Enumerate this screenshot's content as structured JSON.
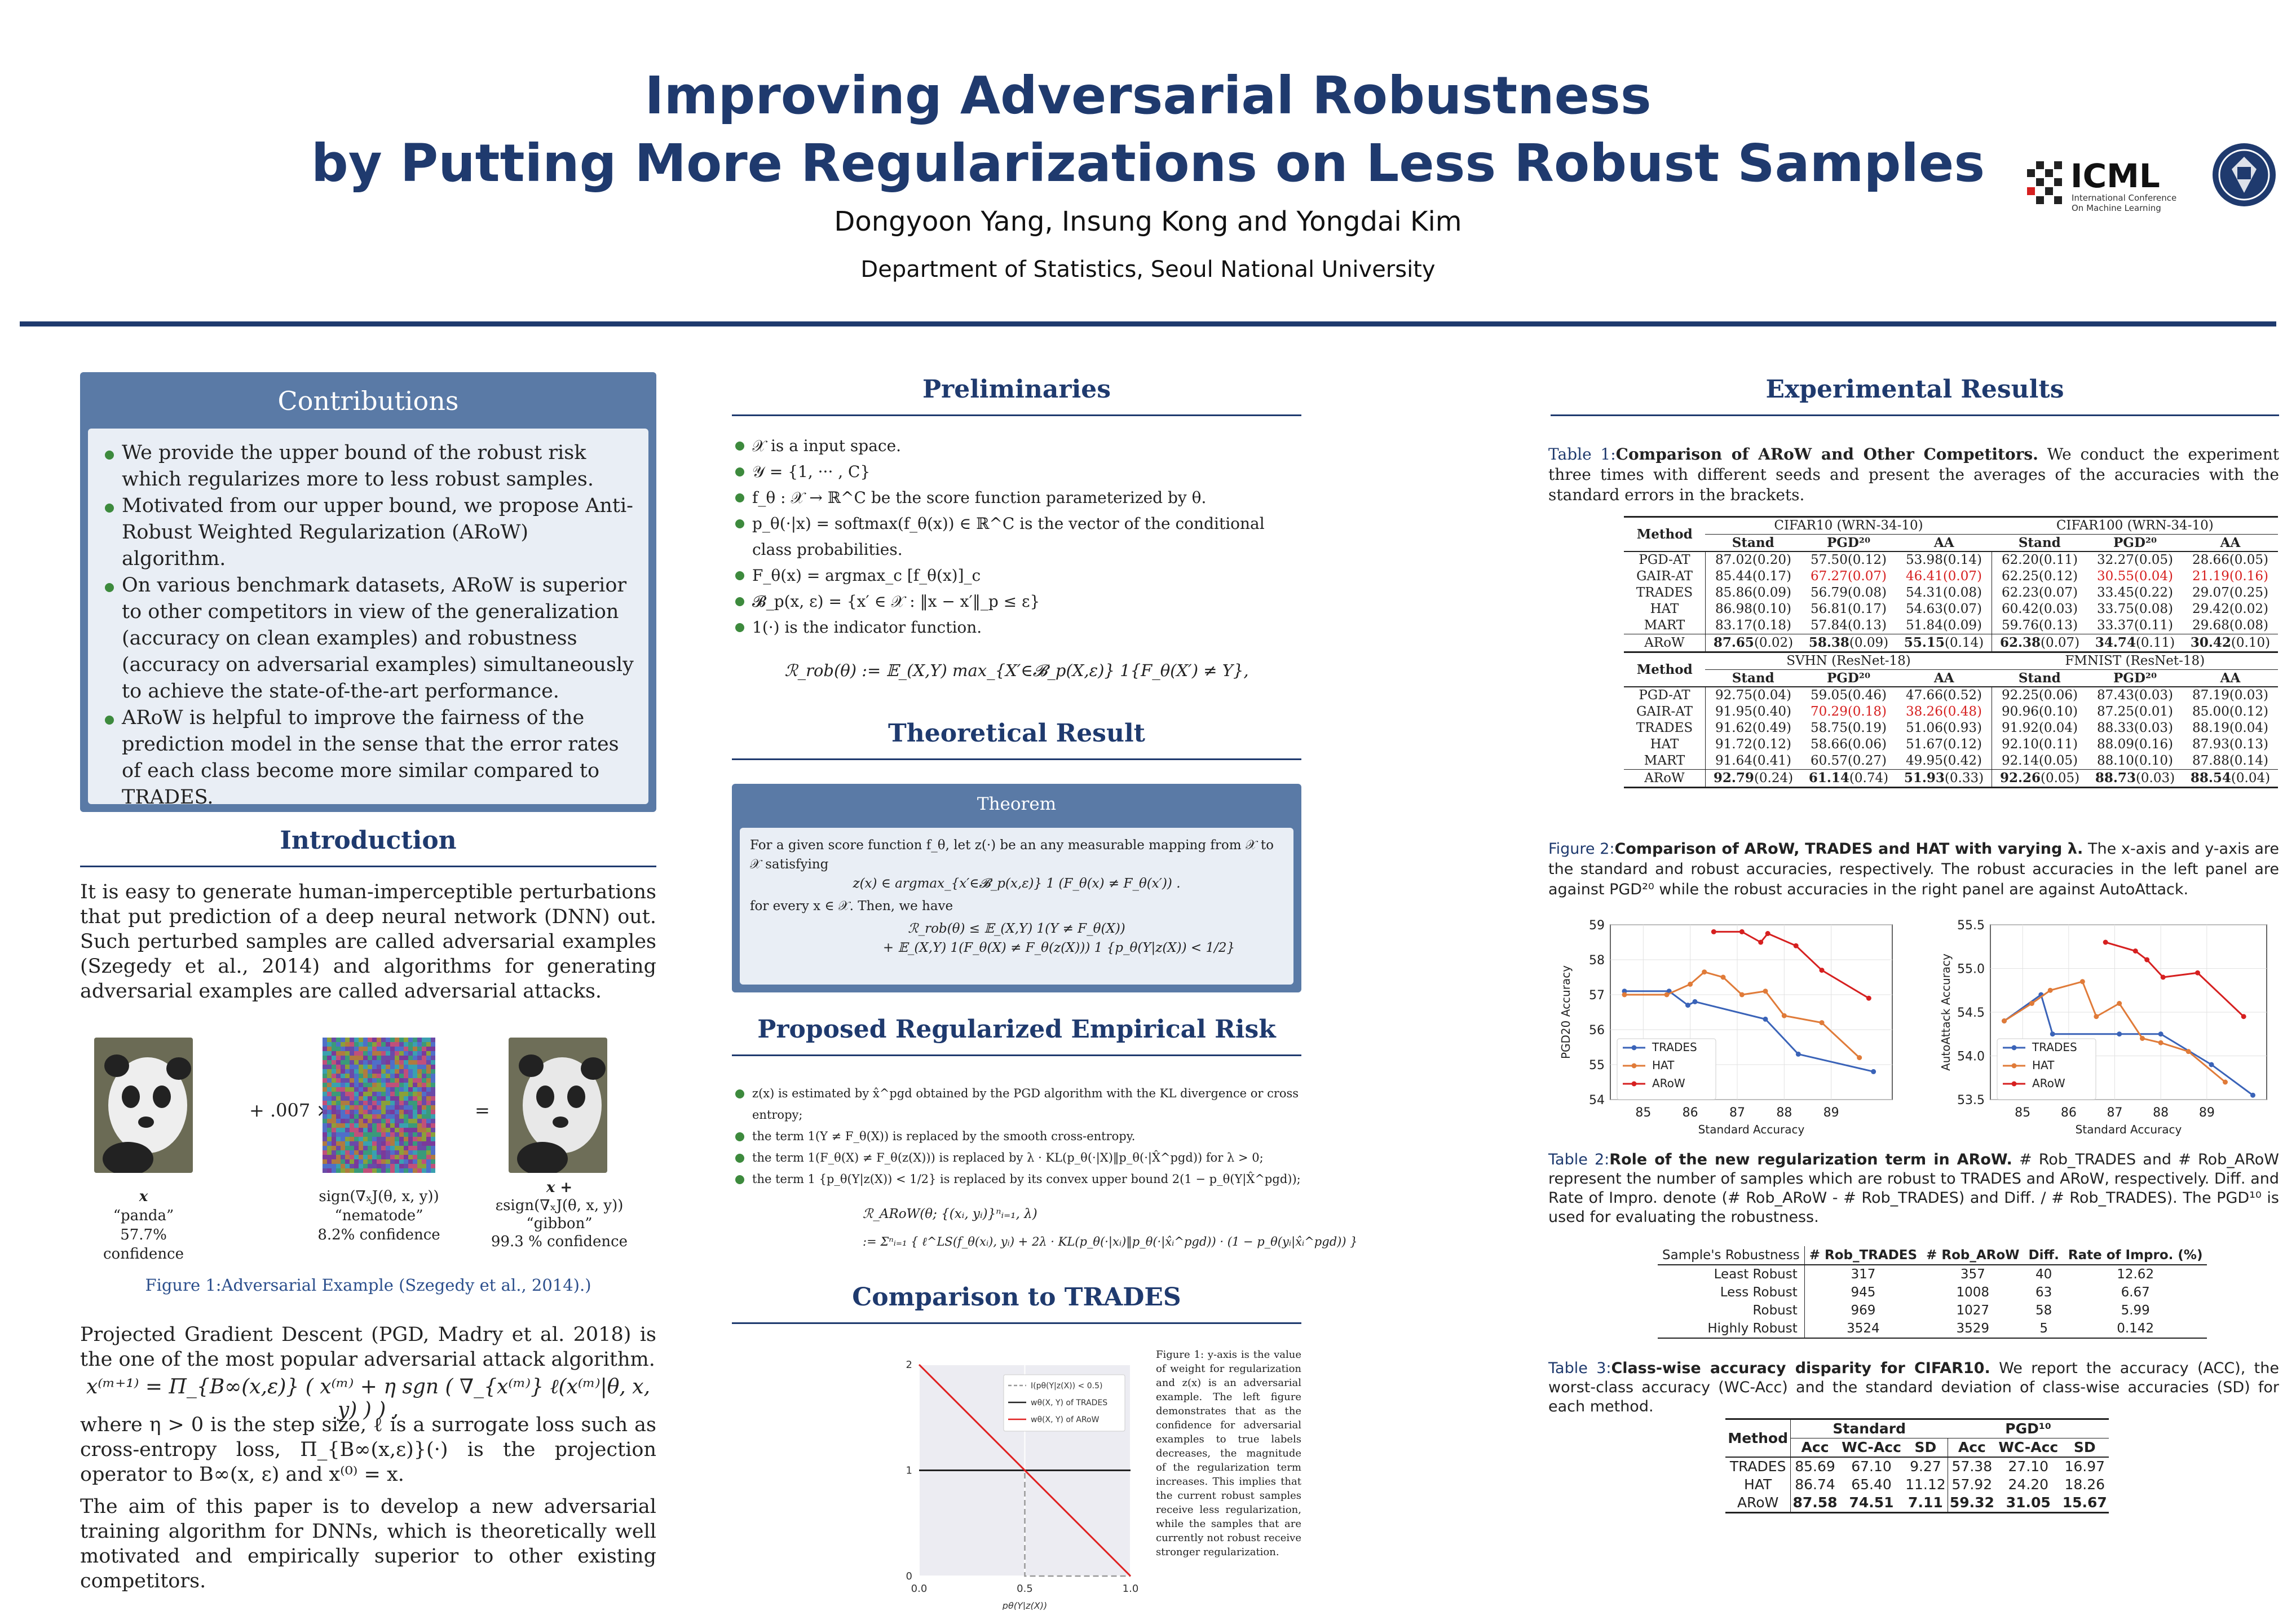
{
  "header": {
    "title_line1": "Improving Adversarial Robustness",
    "title_line2": "by Putting More Regularizations on Less Robust Samples",
    "authors": "Dongyoon Yang, Insung Kong and Yongdai Kim",
    "affiliation": "Department of Statistics, Seoul National University",
    "icml_logo": "ICML",
    "icml_sub1": "International Conference",
    "icml_sub2": "On Machine Learning"
  },
  "contributions": {
    "title": "Contributions",
    "items": [
      "We provide the upper bound of the robust risk which regularizes more to less robust samples.",
      "Motivated from our upper bound, we propose Anti-Robust Weighted Regularization (ARoW) algorithm.",
      "On various benchmark datasets, ARoW is superior to other competitors in view of the generalization (accuracy on clean examples) and robustness (accuracy on adversarial examples) simultaneously to achieve the state-of-the-art performance.",
      "ARoW is helpful to improve the fairness of the prediction model in the sense that the error rates of each class become more similar compared to TRADES."
    ]
  },
  "introduction": {
    "title": "Introduction",
    "para1": "It is easy to generate human-imperceptible perturbations that put prediction of a deep neural network (DNN) out. Such perturbed samples are called adversarial examples (Szegedy et al., 2014) and algorithms for generating adversarial examples are called adversarial attacks.",
    "fig": {
      "plus_text": "+ .007 ×",
      "equals": "=",
      "x_label": "x",
      "x_name": "“panda”",
      "x_conf": "57.7% confidence",
      "noise_label": "sign(∇ₓJ(θ, x, y))",
      "noise_name": "“nematode”",
      "noise_conf": "8.2% confidence",
      "adv_label1": "x +",
      "adv_label2": "εsign(∇ₓJ(θ, x, y))",
      "adv_name": "“gibbon”",
      "adv_conf": "99.3 % confidence",
      "caption": "Figure 1:Adversarial Example (Szegedy et al., 2014).)"
    },
    "para2": "Projected Gradient Descent (PGD, Madry et al. 2018) is the one of the most popular adversarial attack algorithm.",
    "equation": "x⁽ᵐ⁺¹⁾ = Π_{B∞(x,ε)} ( x⁽ᵐ⁾ + η sgn ( ∇_{x⁽ᵐ⁾} ℓ(x⁽ᵐ⁾|θ, x, y) ) ) ,",
    "para3": "where η > 0 is the step size, ℓ is a surrogate loss such as cross-entropy loss, Π_{B∞(x,ε)}(·) is the projection operator to B∞(x, ε) and x⁽⁰⁾ = x.",
    "para4": "The aim of this paper is to develop a new adversarial training algorithm for DNNs, which is theoretically well motivated and empirically superior to other existing competitors."
  },
  "preliminaries": {
    "title": "Preliminaries",
    "items": [
      "𝒳 is a input space.",
      "𝒴 = {1, ··· , C}",
      "f_θ : 𝒳 → ℝ^C be the score function parameterized by θ.",
      "p_θ(·|x) = softmax(f_θ(x)) ∈ ℝ^C is the vector of the conditional class probabilities.",
      "F_θ(x) = argmax_c [f_θ(x)]_c",
      "𝓑_p(x, ε) = {x′ ∈ 𝒳 : ‖x − x′‖_p ≤ ε}",
      "1(·) is the indicator function."
    ],
    "risk": "ℛ_rob(θ) := 𝔼_(X,Y) max_{X′∈𝓑_p(X,ε)} 1{F_θ(X′) ≠ Y},"
  },
  "theoretical": {
    "title": "Theoretical Result",
    "box_title": "Theorem",
    "line1": "For a given score function f_θ, let z(·) be an any measurable mapping from 𝒳 to 𝒳 satisfying",
    "eq1": "z(x) ∈ argmax_{x′∈𝓑_p(x,ε)} 1 (F_θ(x) ≠ F_θ(x′)) .",
    "line2": "for every x ∈ 𝒳. Then, we have",
    "eq2a": "ℛ_rob(θ) ≤ 𝔼_(X,Y) 1(Y ≠ F_θ(X))",
    "eq2b": "+ 𝔼_(X,Y) 1(F_θ(X) ≠ F_θ(z(X))) 1 {p_θ(Y|z(X)) < 1/2}"
  },
  "proposed": {
    "title": "Proposed Regularized Empirical Risk",
    "items": [
      "z(x) is estimated by x̂^pgd obtained by the PGD algorithm with the KL divergence or cross entropy;",
      "the term 1(Y ≠ F_θ(X)) is replaced by the smooth cross-entropy.",
      "the term 1(F_θ(X) ≠ F_θ(z(X))) is replaced by λ · KL(p_θ(·|X)‖p_θ(·|X̂^pgd)) for λ > 0;",
      "the term 1 {p_θ(Y|z(X)) < 1/2} is replaced by its convex upper bound 2(1 − p_θ(Y|X̂^pgd));"
    ],
    "eq1": "ℛ_ARoW(θ; {(xᵢ, yᵢ)}ⁿᵢ₌₁, λ)",
    "eq2": ":= Σⁿᵢ₌₁ { ℓ^LS(f_θ(xᵢ), yᵢ) + 2λ · KL(p_θ(·|xᵢ)‖p_θ(·|x̂ᵢ^pgd)) · (1 − p_θ(yᵢ|x̂ᵢ^pgd)) }"
  },
  "comparison": {
    "title": "Comparison to TRADES",
    "legend": [
      "I(pθ(Y|z(X)) < 0.5)",
      "wθ(X, Y) of TRADES",
      "wθ(X, Y) of ARoW"
    ],
    "xlabel": "pθ(Y|z(X))",
    "x_ticks": [
      "0.0",
      "0.5",
      "1.0"
    ],
    "y_ticks": [
      "0",
      "1",
      "2"
    ],
    "caption": "Figure 1: y-axis is the value of weight for regularization and z(x) is an adversarial example. The left figure demonstrates that as the confidence for adversarial examples to true labels decreases, the magnitude of the regularization term increases. This implies that the current robust samples receive less regularization, while the samples that are currently not robust receive stronger regularization."
  },
  "experimental": {
    "title": "Experimental Results",
    "table1_caption_label": "Table 1:",
    "table1_caption_bold": "Comparison of ARoW and Other Competitors.",
    "table1_caption_rest": " We conduct the experiment three times with different seeds and present the averages of the accuracies with the standard errors in the brackets.",
    "table1": {
      "method_header": "Method",
      "blocks": [
        {
          "ds1": "CIFAR10 (WRN-34-10)",
          "ds2": "CIFAR100 (WRN-34-10)",
          "cols": [
            "Stand",
            "PGD²⁰",
            "AA",
            "Stand",
            "PGD²⁰",
            "AA"
          ],
          "rows": [
            [
              "PGD-AT",
              "87.02(0.20)",
              "57.50(0.12)",
              "53.98(0.14)",
              "62.20(0.11)",
              "32.27(0.05)",
              "28.66(0.05)"
            ],
            [
              "GAIR-AT",
              "85.44(0.17)",
              "67.27(0.07)",
              "46.41(0.07)",
              "62.25(0.12)",
              "30.55(0.04)",
              "21.19(0.16)"
            ],
            [
              "TRADES",
              "85.86(0.09)",
              "56.79(0.08)",
              "54.31(0.08)",
              "62.23(0.07)",
              "33.45(0.22)",
              "29.07(0.25)"
            ],
            [
              "HAT",
              "86.98(0.10)",
              "56.81(0.17)",
              "54.63(0.07)",
              "60.42(0.03)",
              "33.75(0.08)",
              "29.42(0.02)"
            ],
            [
              "MART",
              "83.17(0.18)",
              "57.84(0.13)",
              "51.84(0.09)",
              "59.76(0.13)",
              "33.37(0.11)",
              "29.68(0.08)"
            ],
            [
              "ARoW",
              "87.65(0.02)",
              "58.38(0.09)",
              "55.15(0.14)",
              "62.38(0.07)",
              "34.74(0.11)",
              "30.42(0.10)"
            ]
          ]
        },
        {
          "ds1": "SVHN (ResNet-18)",
          "ds2": "FMNIST (ResNet-18)",
          "cols": [
            "Stand",
            "PGD²⁰",
            "AA",
            "Stand",
            "PGD²⁰",
            "AA"
          ],
          "rows": [
            [
              "PGD-AT",
              "92.75(0.04)",
              "59.05(0.46)",
              "47.66(0.52)",
              "92.25(0.06)",
              "87.43(0.03)",
              "87.19(0.03)"
            ],
            [
              "GAIR-AT",
              "91.95(0.40)",
              "70.29(0.18)",
              "38.26(0.48)",
              "90.96(0.10)",
              "87.25(0.01)",
              "85.00(0.12)"
            ],
            [
              "TRADES",
              "91.62(0.49)",
              "58.75(0.19)",
              "51.06(0.93)",
              "91.92(0.04)",
              "88.33(0.03)",
              "88.19(0.04)"
            ],
            [
              "HAT",
              "91.72(0.12)",
              "58.66(0.06)",
              "51.67(0.12)",
              "92.10(0.11)",
              "88.09(0.16)",
              "87.93(0.13)"
            ],
            [
              "MART",
              "91.64(0.41)",
              "60.57(0.27)",
              "49.95(0.42)",
              "92.14(0.05)",
              "88.10(0.10)",
              "87.88(0.14)"
            ],
            [
              "ARoW",
              "92.79(0.24)",
              "61.14(0.74)",
              "51.93(0.33)",
              "92.26(0.05)",
              "88.73(0.03)",
              "88.54(0.04)"
            ]
          ]
        }
      ]
    },
    "fig2_caption_label": "Figure 2:",
    "fig2_caption_bold": "Comparison of ARoW, TRADES and HAT with varying λ.",
    "fig2_caption_rest": " The x-axis and y-axis are the standard and robust accuracies, respectively. The robust accuracies in the left panel are against PGD²⁰ while the robust accuracies in the right panel are against AutoAttack.",
    "table2_caption_label": "Table 2:",
    "table2_caption_bold": "Role of the new regularization term in ARoW.",
    "table2_caption_rest": " # Rob_TRADES and # Rob_ARoW represent the number of samples which are robust to TRADES and ARoW, respectively. Diff. and Rate of Impro. denote (# Rob_ARoW - # Rob_TRADES) and Diff. / # Rob_TRADES). The PGD¹⁰ is used for evaluating the robustness.",
    "table2": {
      "headers": [
        "Sample's Robustness",
        "# Rob_TRADES",
        "# Rob_ARoW",
        "Diff.",
        "Rate of Impro. (%)"
      ],
      "rows": [
        [
          "Least Robust",
          "317",
          "357",
          "40",
          "12.62"
        ],
        [
          "Less Robust",
          "945",
          "1008",
          "63",
          "6.67"
        ],
        [
          "Robust",
          "969",
          "1027",
          "58",
          "5.99"
        ],
        [
          "Highly Robust",
          "3524",
          "3529",
          "5",
          "0.142"
        ]
      ]
    },
    "table3_caption_label": "Table 3:",
    "table3_caption_bold": "Class-wise accuracy disparity for CIFAR10.",
    "table3_caption_rest": " We report the accuracy (ACC), the worst-class accuracy (WC-Acc) and the standard deviation of class-wise accuracies (SD) for each method.",
    "table3": {
      "method": "Method",
      "group1": "Standard",
      "group2": "PGD¹⁰",
      "cols": [
        "Acc",
        "WC-Acc",
        "SD",
        "Acc",
        "WC-Acc",
        "SD"
      ],
      "rows": [
        [
          "TRADES",
          "85.69",
          "67.10",
          "9.27",
          "57.38",
          "27.10",
          "16.97"
        ],
        [
          "HAT",
          "86.74",
          "65.40",
          "11.12",
          "57.92",
          "24.20",
          "18.26"
        ],
        [
          "ARoW",
          "87.58",
          "74.51",
          "7.11",
          "59.32",
          "31.05",
          "15.67"
        ]
      ]
    }
  },
  "chart_data": [
    {
      "type": "line",
      "xlabel": "Standard Accuracy",
      "ylabel": "PGD20 Accuracy",
      "xlim": [
        84.3,
        90.3
      ],
      "ylim": [
        54,
        59
      ],
      "x_ticks": [
        "85",
        "86",
        "87",
        "88",
        "89"
      ],
      "y_ticks": [
        "54",
        "55",
        "56",
        "57",
        "58",
        "59"
      ],
      "legend_position": "bottom-left",
      "series": [
        {
          "name": "TRADES",
          "color": "#3a63b8",
          "x": [
            84.6,
            85.55,
            85.95,
            86.1,
            87.6,
            88.3,
            89.9
          ],
          "y": [
            57.1,
            57.1,
            56.7,
            56.8,
            56.3,
            55.3,
            54.8
          ]
        },
        {
          "name": "HAT",
          "color": "#e07b39",
          "x": [
            84.6,
            85.5,
            86.0,
            86.3,
            86.7,
            87.1,
            87.6,
            88.0,
            88.8,
            89.6
          ],
          "y": [
            57.0,
            57.0,
            57.3,
            57.65,
            57.5,
            57.0,
            57.1,
            56.4,
            56.2,
            55.2
          ]
        },
        {
          "name": "ARoW",
          "color": "#d62020",
          "x": [
            86.5,
            87.1,
            87.5,
            87.65,
            88.25,
            88.8,
            89.8
          ],
          "y": [
            58.8,
            58.8,
            58.5,
            58.75,
            58.4,
            57.7,
            56.9
          ]
        }
      ]
    },
    {
      "type": "line",
      "xlabel": "Standard Accuracy",
      "ylabel": "AutoAttack Accuracy",
      "xlim": [
        84.3,
        90.3
      ],
      "ylim": [
        53.5,
        55.5
      ],
      "x_ticks": [
        "85",
        "86",
        "87",
        "88",
        "89"
      ],
      "y_ticks": [
        "53.5",
        "54.0",
        "54.5",
        "55.0",
        "55.5"
      ],
      "legend_position": "bottom-left",
      "series": [
        {
          "name": "TRADES",
          "color": "#3a63b8",
          "x": [
            84.6,
            85.4,
            85.65,
            87.1,
            88.0,
            89.1,
            90.0
          ],
          "y": [
            54.4,
            54.7,
            54.25,
            54.25,
            54.25,
            53.9,
            53.55
          ]
        },
        {
          "name": "HAT",
          "color": "#e07b39",
          "x": [
            84.6,
            85.2,
            85.6,
            86.3,
            86.6,
            87.1,
            87.6,
            88.0,
            88.6,
            89.4
          ],
          "y": [
            54.4,
            54.6,
            54.75,
            54.85,
            54.45,
            54.6,
            54.2,
            54.15,
            54.05,
            53.7
          ]
        },
        {
          "name": "ARoW",
          "color": "#d62020",
          "x": [
            86.8,
            87.45,
            87.7,
            88.05,
            88.8,
            89.8
          ],
          "y": [
            55.3,
            55.2,
            55.1,
            54.9,
            54.95,
            54.45
          ]
        }
      ]
    },
    {
      "type": "line",
      "xlabel": "pθ(Y|z(X))",
      "ylabel": "",
      "xlim": [
        0,
        1
      ],
      "ylim": [
        0,
        2
      ],
      "x_ticks": [
        "0.0",
        "0.5",
        "1.0"
      ],
      "y_ticks": [
        "0",
        "1",
        "2"
      ],
      "series": [
        {
          "name": "I(pθ(Y|z(X)) < 0.5)",
          "color": "#999999",
          "x": [
            0,
            0.5,
            0.5,
            1.0
          ],
          "y": [
            1,
            1,
            0,
            0
          ]
        },
        {
          "name": "wθ(X, Y) of TRADES",
          "color": "#222222",
          "x": [
            0,
            1.0
          ],
          "y": [
            1,
            1
          ]
        },
        {
          "name": "wθ(X, Y) of ARoW",
          "color": "#e02020",
          "x": [
            0,
            1.0
          ],
          "y": [
            2,
            0
          ]
        }
      ]
    }
  ]
}
